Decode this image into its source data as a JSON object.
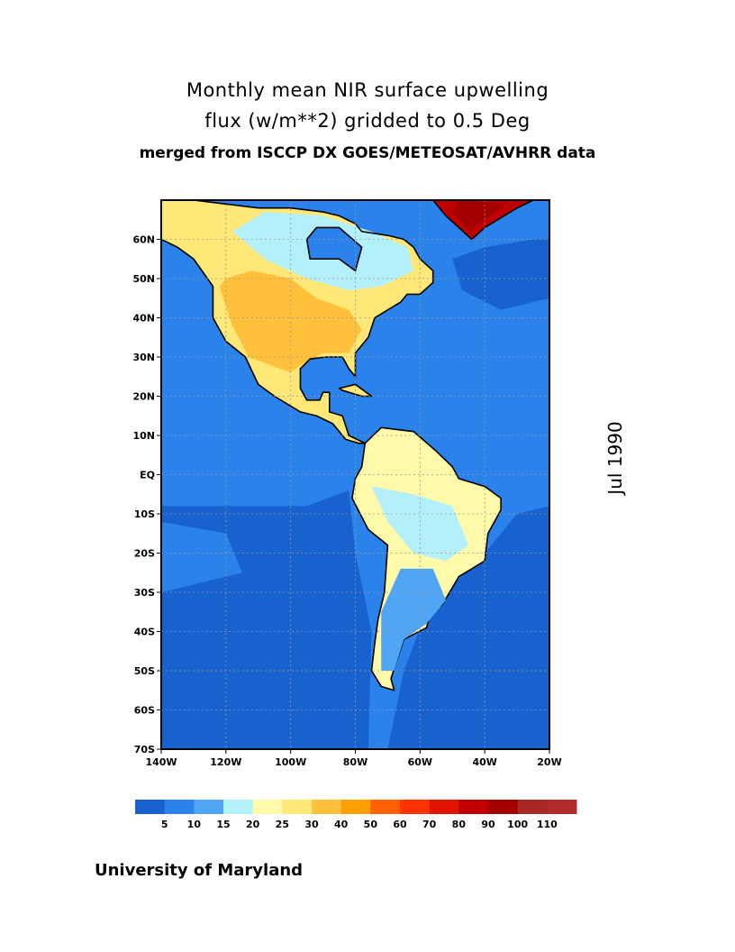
{
  "title": {
    "line1": "Monthly mean NIR surface upwelling",
    "line2": "flux (w/m**2) gridded to 0.5 Deg",
    "line3": "merged from ISCCP DX GOES/METEOSAT/AVHRR data"
  },
  "date_label": "Jul 1990",
  "credit": "University of Maryland",
  "map": {
    "projection": "lat-lon",
    "lon_range": [
      -140,
      -20
    ],
    "lat_range": [
      -70,
      70
    ],
    "lon_ticks": [
      "140W",
      "120W",
      "100W",
      "80W",
      "60W",
      "40W",
      "20W"
    ],
    "lon_tick_values": [
      -140,
      -120,
      -100,
      -80,
      -60,
      -40,
      -20
    ],
    "lat_ticks": [
      "60N",
      "50N",
      "40N",
      "30N",
      "20N",
      "10N",
      "EQ",
      "10S",
      "20S",
      "30S",
      "40S",
      "50S",
      "60S",
      "70S"
    ],
    "lat_tick_values": [
      60,
      50,
      40,
      30,
      20,
      10,
      0,
      -10,
      -20,
      -30,
      -40,
      -50,
      -60,
      -70
    ],
    "grid": true
  },
  "colorbar": {
    "labels": [
      "5",
      "10",
      "15",
      "20",
      "25",
      "30",
      "40",
      "50",
      "60",
      "70",
      "80",
      "90",
      "100",
      "110"
    ],
    "colors": [
      "#1862d0",
      "#2a82ea",
      "#50a5f5",
      "#b4f0fa",
      "#fffaaa",
      "#ffe878",
      "#ffc03c",
      "#ffa000",
      "#ff6000",
      "#ff3200",
      "#e11400",
      "#c00000",
      "#a50000",
      "#a82828",
      "#b22a2a"
    ]
  }
}
